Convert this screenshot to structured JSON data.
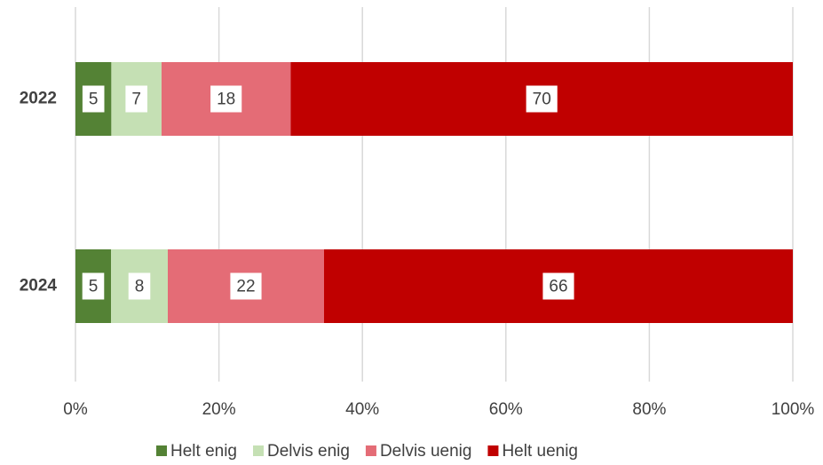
{
  "chart_data": {
    "type": "bar",
    "orientation": "horizontal",
    "stack": "percent",
    "categories": [
      "2022",
      "2024"
    ],
    "series": [
      {
        "name": "Helt enig",
        "color": "#548235",
        "values": [
          5,
          5
        ]
      },
      {
        "name": "Delvis enig",
        "color": "#c5e0b4",
        "values": [
          7,
          8
        ]
      },
      {
        "name": "Delvis uenig",
        "color": "#e46c76",
        "values": [
          18,
          22
        ]
      },
      {
        "name": "Helt uenig",
        "color": "#c00000",
        "values": [
          70,
          66
        ]
      }
    ],
    "xlim": [
      0,
      100
    ],
    "xticks": [
      {
        "value": 0,
        "label": "0%"
      },
      {
        "value": 20,
        "label": "20%"
      },
      {
        "value": 40,
        "label": "40%"
      },
      {
        "value": 60,
        "label": "60%"
      },
      {
        "value": 80,
        "label": "80%"
      },
      {
        "value": 100,
        "label": "100%"
      }
    ],
    "grid": true,
    "legend": "bottom"
  }
}
